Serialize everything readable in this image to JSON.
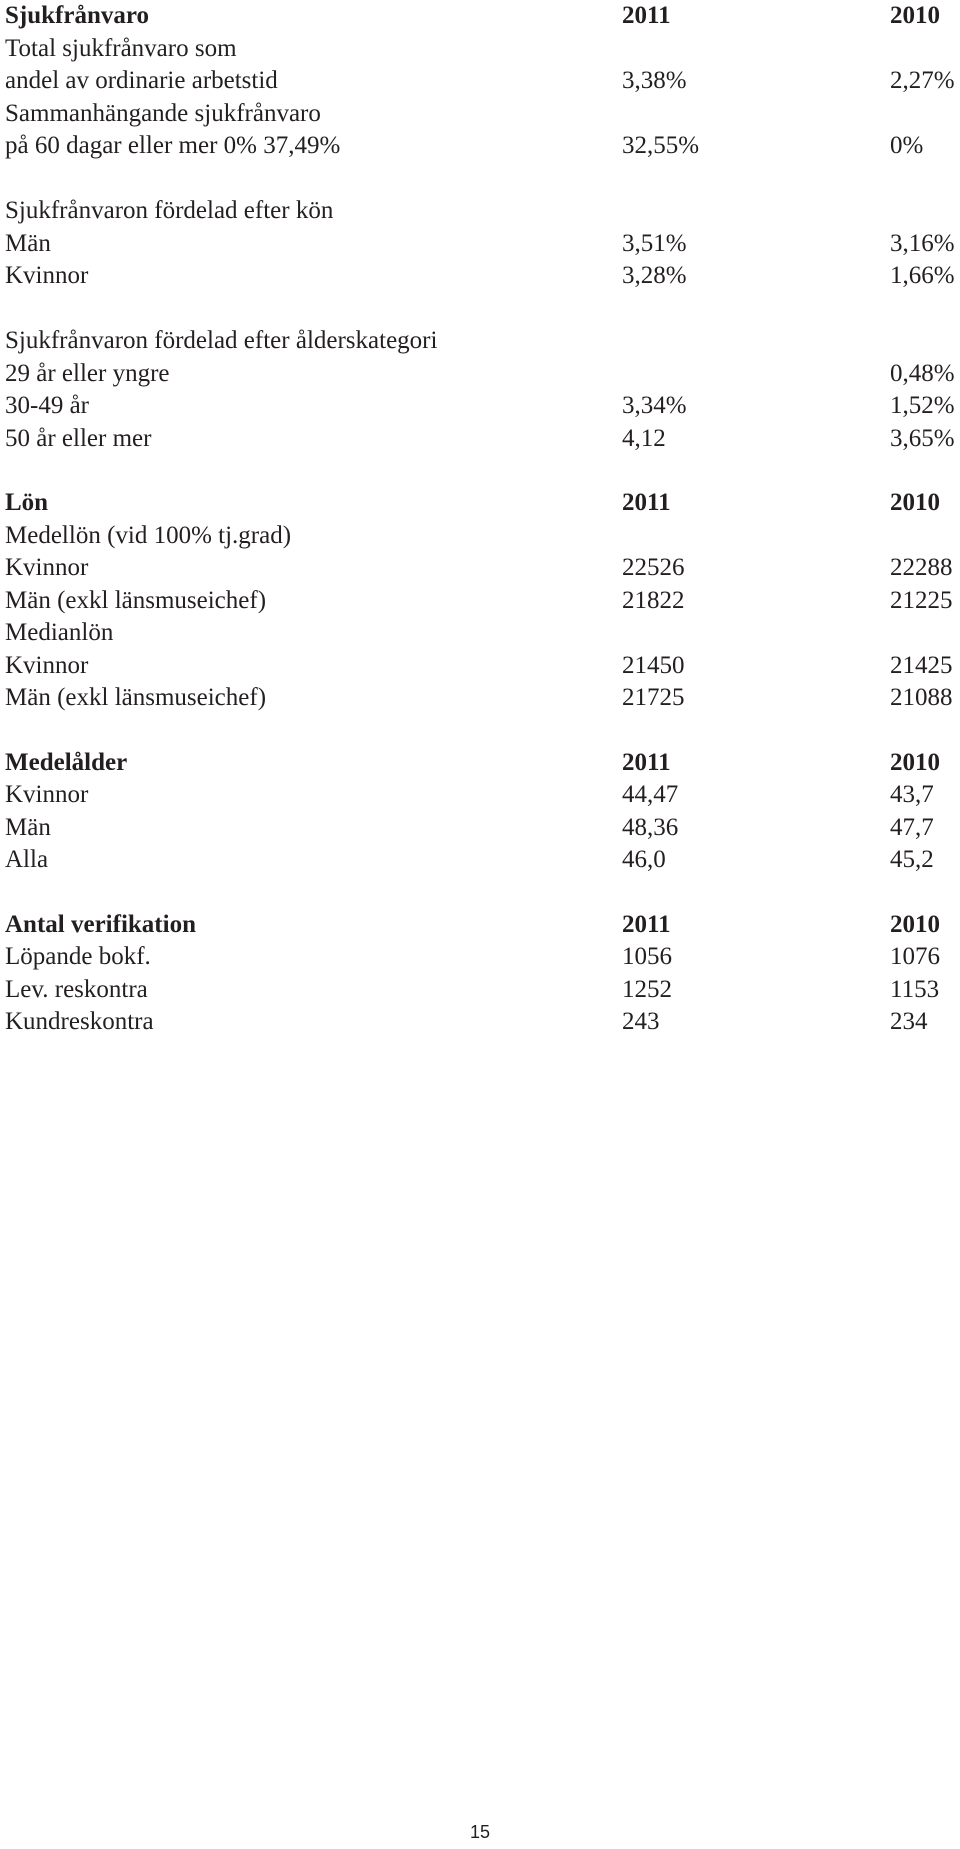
{
  "sections": {
    "sjuk": {
      "title": "Sjukfrånvaro",
      "col1": "2011",
      "col2": "2010",
      "rows": [
        {
          "label": "Total sjukfrånvaro som",
          "c1": "",
          "c2": ""
        },
        {
          "label": "andel av ordinarie arbetstid",
          "c1": "3,38%",
          "c2": "2,27%"
        },
        {
          "label": "Sammanhängande sjukfrånvaro",
          "c1": "",
          "c2": ""
        },
        {
          "label": "på 60 dagar eller mer 0% 37,49%",
          "c1": "32,55%",
          "c2": "0%"
        },
        {
          "label": "Sjukfrånvaron fördelad efter kön",
          "c1": "",
          "c2": ""
        },
        {
          "label": "Män",
          "c1": "3,51%",
          "c2": "3,16%"
        },
        {
          "label": "Kvinnor",
          "c1": "3,28%",
          "c2": "1,66%"
        },
        {
          "label": "Sjukfrånvaron fördelad efter ålderskategori",
          "c1": "",
          "c2": ""
        },
        {
          "label": "29 år eller yngre",
          "c1": "",
          "c2": "0,48%"
        },
        {
          "label": "30-49 år",
          "c1": "3,34%",
          "c2": "1,52%"
        },
        {
          "label": "50 år eller mer",
          "c1": "4,12",
          "c2": "3,65%"
        }
      ]
    },
    "lon": {
      "title": "Lön",
      "col1": "2011",
      "col2": "2010",
      "rows": [
        {
          "label": "Medellön (vid 100% tj.grad)",
          "c1": "",
          "c2": ""
        },
        {
          "label": "Kvinnor",
          "c1": "22526",
          "c2": "22288"
        },
        {
          "label": "Män (exkl länsmuseichef)",
          "c1": "21822",
          "c2": "21225"
        },
        {
          "label": "Medianlön",
          "c1": "",
          "c2": ""
        },
        {
          "label": "Kvinnor",
          "c1": "21450",
          "c2": "21425"
        },
        {
          "label": "Män (exkl länsmuseichef)",
          "c1": "21725",
          "c2": "21088"
        }
      ]
    },
    "alder": {
      "title": "Medelålder",
      "col1": "2011",
      "col2": "2010",
      "rows": [
        {
          "label": "Kvinnor",
          "c1": "44,47",
          "c2": "43,7"
        },
        {
          "label": "Män",
          "c1": "48,36",
          "c2": "47,7"
        },
        {
          "label": "Alla",
          "c1": "46,0",
          "c2": "45,2"
        }
      ]
    },
    "verif": {
      "title": "Antal verifikation",
      "col1": "2011",
      "col2": "2010",
      "rows": [
        {
          "label": "Löpande bokf.",
          "c1": "1056",
          "c2": "1076"
        },
        {
          "label": "Lev. reskontra",
          "c1": "1252",
          "c2": "1153"
        },
        {
          "label": "Kundreskontra",
          "c1": "243",
          "c2": "234"
        }
      ]
    }
  },
  "page_number": "15"
}
